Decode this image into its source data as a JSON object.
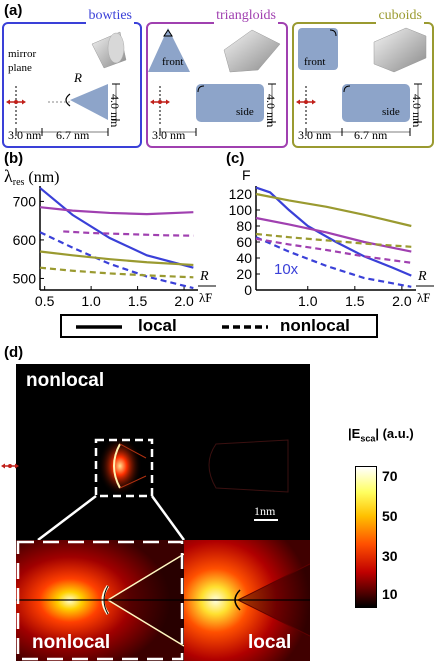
{
  "panel_a": {
    "label": "(a)",
    "boxes": [
      {
        "title": "bowties",
        "color": "#3a40d8",
        "gap": "3.0 nm",
        "length": "6.7 nm",
        "height": "4.0 nm",
        "radius_label": "R",
        "mirror_label": "mirror",
        "plane_label": "plane"
      },
      {
        "title": "triangloids",
        "color": "#a040b0",
        "gap": "3.0 nm",
        "height": "4.0 nm",
        "front_label": "front",
        "side_label": "side"
      },
      {
        "title": "cuboids",
        "color": "#9a9a30",
        "gap": "3.0 nm",
        "length": "6.7 nm",
        "height": "4.0 nm",
        "front_label": "front",
        "side_label": "side"
      }
    ]
  },
  "panel_b": {
    "label": "(b)"
  },
  "panel_c": {
    "label": "(c)",
    "annotation": "10x"
  },
  "legend": {
    "local": "local",
    "nonlocal": "nonlocal"
  },
  "panel_d": {
    "label": "(d)",
    "top_label": "nonlocal",
    "bottom_left_label": "nonlocal",
    "bottom_right_label": "local",
    "scale_label": "1nm",
    "colorbar_title_prefix": "|E",
    "colorbar_title_sub": "sca",
    "colorbar_title_suffix": "| (a.u.)",
    "colorbar_ticks": [
      "70",
      "50",
      "30",
      "10"
    ]
  },
  "chart_data": [
    {
      "type": "line",
      "panel": "(b)",
      "ylabel": "λres (nm)",
      "xlabel": "R / λ̃F",
      "xlim": [
        0.45,
        2.15
      ],
      "ylim": [
        470,
        740
      ],
      "xticks": [
        "0.5",
        "1.0",
        "1.5",
        "2.0"
      ],
      "yticks": [
        "500",
        "600",
        "700"
      ],
      "series": [
        {
          "color": "#3a40d8",
          "style": "solid",
          "x": [
            0.45,
            0.8,
            1.2,
            1.6,
            2.1
          ],
          "y": [
            735,
            665,
            605,
            560,
            528
          ]
        },
        {
          "color": "#3a40d8",
          "style": "dashed",
          "x": [
            0.45,
            0.8,
            1.2,
            1.6,
            2.1
          ],
          "y": [
            620,
            580,
            538,
            505,
            475
          ]
        },
        {
          "color": "#a040b0",
          "style": "solid",
          "x": [
            0.45,
            0.8,
            1.2,
            1.6,
            2.1
          ],
          "y": [
            685,
            676,
            670,
            667,
            672
          ]
        },
        {
          "color": "#a040b0",
          "style": "dashed",
          "x": [
            0.7,
            1.0,
            1.4,
            1.8,
            2.1
          ],
          "y": [
            622,
            618,
            615,
            612,
            611
          ]
        },
        {
          "color": "#9a9a30",
          "style": "solid",
          "x": [
            0.45,
            0.8,
            1.2,
            1.6,
            2.1
          ],
          "y": [
            570,
            560,
            550,
            542,
            535
          ]
        },
        {
          "color": "#9a9a30",
          "style": "dashed",
          "x": [
            0.45,
            0.8,
            1.2,
            1.6,
            2.1
          ],
          "y": [
            528,
            520,
            513,
            508,
            503
          ]
        }
      ]
    },
    {
      "type": "line",
      "panel": "(c)",
      "ylabel": "F",
      "xlabel": "R / λ̃F",
      "xlim": [
        0.45,
        2.15
      ],
      "ylim": [
        0,
        130
      ],
      "xticks": [
        "1.0",
        "1.5",
        "2.0"
      ],
      "yticks": [
        "0",
        "20",
        "40",
        "60",
        "80",
        "100",
        "120"
      ],
      "series": [
        {
          "color": "#3a40d8",
          "style": "solid",
          "x": [
            0.45,
            0.6,
            0.8,
            1.0,
            1.3,
            1.6,
            1.9,
            2.1
          ],
          "y": [
            128,
            122,
            100,
            80,
            60,
            42,
            28,
            18
          ]
        },
        {
          "color": "#3a40d8",
          "style": "dashed",
          "x": [
            0.45,
            0.8,
            1.2,
            1.6,
            2.1
          ],
          "y": [
            66,
            48,
            30,
            15,
            4
          ]
        },
        {
          "color": "#a040b0",
          "style": "solid",
          "x": [
            0.45,
            0.8,
            1.2,
            1.6,
            2.1
          ],
          "y": [
            90,
            82,
            72,
            60,
            48
          ]
        },
        {
          "color": "#a040b0",
          "style": "dashed",
          "x": [
            0.45,
            0.8,
            1.2,
            1.6,
            2.1
          ],
          "y": [
            64,
            57,
            50,
            42,
            34
          ]
        },
        {
          "color": "#9a9a30",
          "style": "solid",
          "x": [
            0.45,
            0.8,
            1.2,
            1.6,
            2.1
          ],
          "y": [
            120,
            112,
            104,
            94,
            80
          ]
        },
        {
          "color": "#9a9a30",
          "style": "dashed",
          "x": [
            0.45,
            0.8,
            1.2,
            1.6,
            2.1
          ],
          "y": [
            70,
            66,
            62,
            58,
            54
          ]
        }
      ]
    }
  ]
}
